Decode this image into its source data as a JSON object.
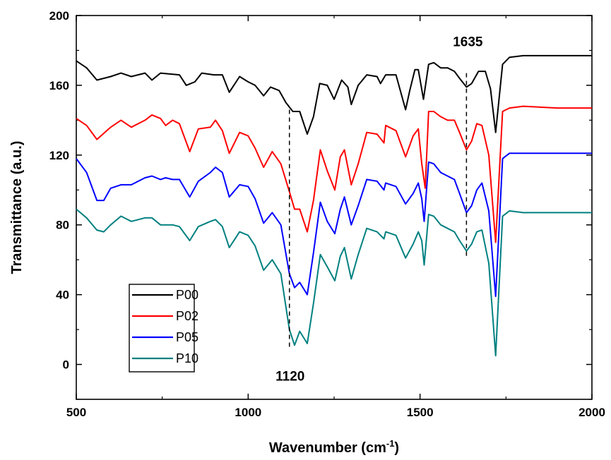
{
  "chart_data": {
    "type": "line",
    "title": "",
    "xlabel": "Wavenumber (cm",
    "xlabel_sup": "-1",
    "xlabel_close": ")",
    "ylabel": "Transmittance (a.u.)",
    "xlim": [
      500,
      2000
    ],
    "ylim": [
      -20,
      200
    ],
    "xticks": [
      500,
      1000,
      1500,
      2000
    ],
    "yticks": [
      0,
      40,
      80,
      120,
      160,
      200
    ],
    "grid": false,
    "legend_position": "bottom-left",
    "annotations": [
      {
        "text": "1120",
        "x": 1120
      },
      {
        "text": "1635",
        "x": 1635
      }
    ],
    "series": [
      {
        "name": "P00",
        "color": "#000000",
        "points": [
          [
            500,
            174
          ],
          [
            530,
            170
          ],
          [
            560,
            163
          ],
          [
            600,
            165
          ],
          [
            630,
            167
          ],
          [
            660,
            165
          ],
          [
            700,
            167
          ],
          [
            720,
            163
          ],
          [
            745,
            167
          ],
          [
            800,
            166
          ],
          [
            820,
            160
          ],
          [
            845,
            162
          ],
          [
            865,
            167
          ],
          [
            900,
            166
          ],
          [
            925,
            166
          ],
          [
            945,
            156
          ],
          [
            975,
            165
          ],
          [
            1000,
            162
          ],
          [
            1020,
            160
          ],
          [
            1045,
            154
          ],
          [
            1065,
            159
          ],
          [
            1090,
            157
          ],
          [
            1110,
            150
          ],
          [
            1130,
            145
          ],
          [
            1150,
            145
          ],
          [
            1172,
            132
          ],
          [
            1190,
            142
          ],
          [
            1208,
            161
          ],
          [
            1230,
            160
          ],
          [
            1250,
            152
          ],
          [
            1272,
            163
          ],
          [
            1290,
            159
          ],
          [
            1300,
            149
          ],
          [
            1320,
            160
          ],
          [
            1345,
            166
          ],
          [
            1375,
            165
          ],
          [
            1385,
            161
          ],
          [
            1400,
            166
          ],
          [
            1430,
            166
          ],
          [
            1458,
            146
          ],
          [
            1470,
            157
          ],
          [
            1485,
            169
          ],
          [
            1495,
            169
          ],
          [
            1510,
            152
          ],
          [
            1525,
            172
          ],
          [
            1540,
            173
          ],
          [
            1560,
            170
          ],
          [
            1580,
            170
          ],
          [
            1600,
            168
          ],
          [
            1615,
            164
          ],
          [
            1635,
            159
          ],
          [
            1650,
            161
          ],
          [
            1670,
            168
          ],
          [
            1690,
            168
          ],
          [
            1705,
            158
          ],
          [
            1720,
            133
          ],
          [
            1740,
            172
          ],
          [
            1760,
            176
          ],
          [
            1800,
            177
          ],
          [
            1900,
            177
          ],
          [
            2000,
            177
          ]
        ]
      },
      {
        "name": "P02",
        "color": "#ff0000",
        "points": [
          [
            500,
            141
          ],
          [
            530,
            137
          ],
          [
            560,
            129
          ],
          [
            600,
            136
          ],
          [
            630,
            140
          ],
          [
            660,
            136
          ],
          [
            700,
            140
          ],
          [
            720,
            143
          ],
          [
            745,
            141
          ],
          [
            760,
            137
          ],
          [
            780,
            140
          ],
          [
            800,
            138
          ],
          [
            830,
            122
          ],
          [
            855,
            135
          ],
          [
            890,
            136
          ],
          [
            905,
            140
          ],
          [
            925,
            134
          ],
          [
            945,
            121
          ],
          [
            975,
            133
          ],
          [
            1000,
            131
          ],
          [
            1020,
            124
          ],
          [
            1045,
            113
          ],
          [
            1070,
            122
          ],
          [
            1095,
            115
          ],
          [
            1120,
            99
          ],
          [
            1135,
            89
          ],
          [
            1150,
            89
          ],
          [
            1172,
            76
          ],
          [
            1190,
            94
          ],
          [
            1210,
            123
          ],
          [
            1230,
            111
          ],
          [
            1252,
            100
          ],
          [
            1268,
            119
          ],
          [
            1280,
            123
          ],
          [
            1300,
            103
          ],
          [
            1320,
            115
          ],
          [
            1345,
            133
          ],
          [
            1375,
            132
          ],
          [
            1395,
            127
          ],
          [
            1400,
            137
          ],
          [
            1430,
            134
          ],
          [
            1458,
            119
          ],
          [
            1480,
            131
          ],
          [
            1495,
            135
          ],
          [
            1505,
            115
          ],
          [
            1515,
            101
          ],
          [
            1525,
            145
          ],
          [
            1540,
            145
          ],
          [
            1560,
            142
          ],
          [
            1580,
            140
          ],
          [
            1600,
            140
          ],
          [
            1615,
            133
          ],
          [
            1635,
            123
          ],
          [
            1650,
            128
          ],
          [
            1665,
            138
          ],
          [
            1680,
            137
          ],
          [
            1700,
            120
          ],
          [
            1720,
            70
          ],
          [
            1740,
            145
          ],
          [
            1760,
            147
          ],
          [
            1800,
            148
          ],
          [
            1900,
            147
          ],
          [
            2000,
            147
          ]
        ]
      },
      {
        "name": "P05",
        "color": "#0000ff",
        "points": [
          [
            500,
            118
          ],
          [
            530,
            110
          ],
          [
            560,
            94
          ],
          [
            580,
            94
          ],
          [
            600,
            101
          ],
          [
            630,
            103
          ],
          [
            660,
            103
          ],
          [
            700,
            107
          ],
          [
            720,
            108
          ],
          [
            745,
            106
          ],
          [
            760,
            107
          ],
          [
            780,
            106
          ],
          [
            800,
            106
          ],
          [
            830,
            96
          ],
          [
            855,
            105
          ],
          [
            890,
            110
          ],
          [
            905,
            113
          ],
          [
            925,
            110
          ],
          [
            945,
            96
          ],
          [
            975,
            103
          ],
          [
            1000,
            102
          ],
          [
            1020,
            95
          ],
          [
            1045,
            81
          ],
          [
            1070,
            87
          ],
          [
            1095,
            80
          ],
          [
            1120,
            52
          ],
          [
            1135,
            44
          ],
          [
            1150,
            47
          ],
          [
            1172,
            40
          ],
          [
            1190,
            64
          ],
          [
            1210,
            93
          ],
          [
            1230,
            82
          ],
          [
            1252,
            75
          ],
          [
            1268,
            89
          ],
          [
            1280,
            96
          ],
          [
            1300,
            80
          ],
          [
            1320,
            91
          ],
          [
            1345,
            106
          ],
          [
            1375,
            105
          ],
          [
            1395,
            100
          ],
          [
            1400,
            104
          ],
          [
            1430,
            102
          ],
          [
            1458,
            92
          ],
          [
            1480,
            98
          ],
          [
            1495,
            104
          ],
          [
            1505,
            95
          ],
          [
            1512,
            82
          ],
          [
            1525,
            116
          ],
          [
            1540,
            115
          ],
          [
            1560,
            110
          ],
          [
            1580,
            108
          ],
          [
            1600,
            106
          ],
          [
            1615,
            98
          ],
          [
            1635,
            87
          ],
          [
            1650,
            91
          ],
          [
            1665,
            100
          ],
          [
            1680,
            104
          ],
          [
            1700,
            88
          ],
          [
            1720,
            39
          ],
          [
            1740,
            118
          ],
          [
            1760,
            121
          ],
          [
            1800,
            121
          ],
          [
            1900,
            121
          ],
          [
            2000,
            121
          ]
        ]
      },
      {
        "name": "P10",
        "color": "#008080",
        "points": [
          [
            500,
            89
          ],
          [
            530,
            84
          ],
          [
            560,
            77
          ],
          [
            580,
            76
          ],
          [
            600,
            80
          ],
          [
            630,
            85
          ],
          [
            660,
            82
          ],
          [
            700,
            84
          ],
          [
            720,
            84
          ],
          [
            745,
            80
          ],
          [
            760,
            80
          ],
          [
            780,
            80
          ],
          [
            800,
            79
          ],
          [
            830,
            71
          ],
          [
            855,
            79
          ],
          [
            890,
            82
          ],
          [
            905,
            83
          ],
          [
            925,
            79
          ],
          [
            945,
            67
          ],
          [
            975,
            76
          ],
          [
            1000,
            74
          ],
          [
            1020,
            68
          ],
          [
            1045,
            54
          ],
          [
            1070,
            60
          ],
          [
            1095,
            52
          ],
          [
            1120,
            20
          ],
          [
            1135,
            11
          ],
          [
            1150,
            19
          ],
          [
            1172,
            12
          ],
          [
            1190,
            35
          ],
          [
            1210,
            63
          ],
          [
            1230,
            56
          ],
          [
            1252,
            48
          ],
          [
            1268,
            62
          ],
          [
            1280,
            67
          ],
          [
            1300,
            49
          ],
          [
            1320,
            63
          ],
          [
            1345,
            78
          ],
          [
            1375,
            76
          ],
          [
            1395,
            72
          ],
          [
            1400,
            76
          ],
          [
            1430,
            74
          ],
          [
            1458,
            61
          ],
          [
            1480,
            69
          ],
          [
            1495,
            76
          ],
          [
            1505,
            71
          ],
          [
            1512,
            57
          ],
          [
            1525,
            86
          ],
          [
            1540,
            85
          ],
          [
            1560,
            80
          ],
          [
            1580,
            78
          ],
          [
            1600,
            76
          ],
          [
            1615,
            71
          ],
          [
            1635,
            65
          ],
          [
            1650,
            69
          ],
          [
            1665,
            76
          ],
          [
            1680,
            77
          ],
          [
            1700,
            58
          ],
          [
            1720,
            5
          ],
          [
            1740,
            85
          ],
          [
            1760,
            88
          ],
          [
            1800,
            87
          ],
          [
            1900,
            87
          ],
          [
            2000,
            87
          ]
        ]
      }
    ]
  }
}
